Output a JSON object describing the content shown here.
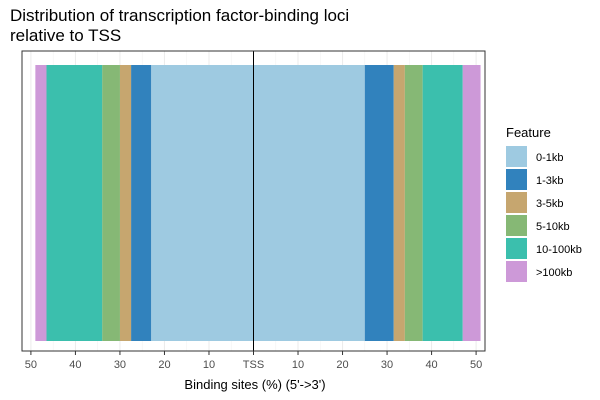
{
  "chart_data": {
    "type": "bar",
    "orientation": "horizontal-stacked-diverging",
    "title_lines": [
      "Distribution of transcription factor-binding loci",
      "relative to TSS"
    ],
    "xlabel": "Binding sites (%) (5'->3')",
    "x_ticks": [
      "50",
      "40",
      "30",
      "20",
      "10",
      "TSS",
      "10",
      "20",
      "30",
      "40",
      "50"
    ],
    "x_tick_values": [
      -50,
      -40,
      -30,
      -20,
      -10,
      0,
      10,
      20,
      30,
      40,
      50
    ],
    "xlim": [
      -52,
      52
    ],
    "grid": true,
    "legend_title": "Feature",
    "legend_position": "right",
    "series": [
      {
        "name": "0-1kb",
        "color": "#9ECAE1",
        "upstream": 23.0,
        "downstream": 25.0
      },
      {
        "name": "1-3kb",
        "color": "#3182BD",
        "upstream": 4.5,
        "downstream": 6.5
      },
      {
        "name": "3-5kb",
        "color": "#C6A66F",
        "upstream": 2.5,
        "downstream": 2.5
      },
      {
        "name": "5-10kb",
        "color": "#86B875",
        "upstream": 4.0,
        "downstream": 4.0
      },
      {
        "name": "10-100kb",
        "color": "#3BBFAD",
        "upstream": 12.5,
        "downstream": 9.0
      },
      {
        "name": ">100kb",
        "color": "#CD99D8",
        "upstream": 2.5,
        "downstream": 4.0
      }
    ]
  }
}
